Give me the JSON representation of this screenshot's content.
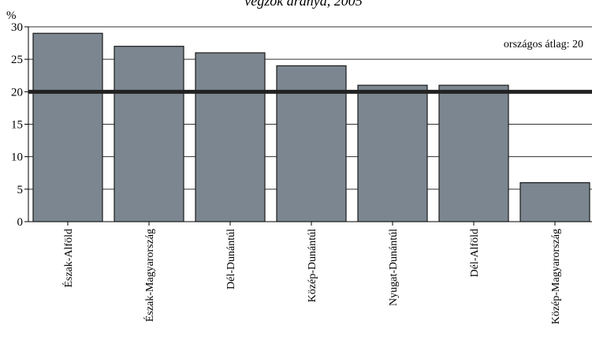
{
  "chart_data": {
    "type": "bar",
    "title": "végzők aránya, 2005",
    "ylabel": "%",
    "ylim": [
      0,
      30
    ],
    "yticks": [
      0,
      5,
      10,
      15,
      20,
      25,
      30
    ],
    "grid": true,
    "categories": [
      "Észak-Alföld",
      "Észak-Magyarország",
      "Dél-Dunántúl",
      "Közép-Dunántúl",
      "Nyugat-Dunántúl",
      "Dél-Alföld",
      "Közép-Magyarország"
    ],
    "values": [
      29,
      27,
      26,
      24,
      21,
      21,
      6
    ],
    "reference_line": {
      "value": 20,
      "label": "országos átlag: 20"
    },
    "colors": {
      "bar": "#7b8690",
      "bar_edge": "#1a1a1a",
      "reference": "#222222",
      "grid": "#333333"
    }
  }
}
